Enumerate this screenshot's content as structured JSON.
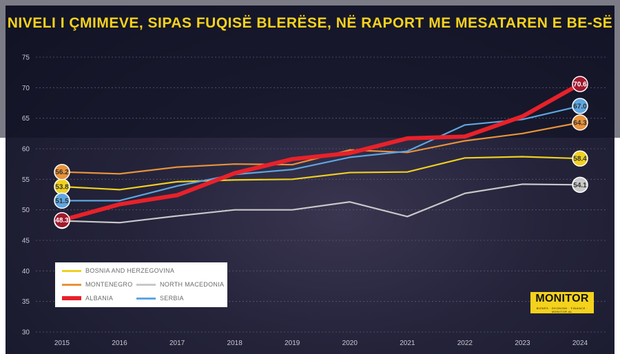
{
  "title": "NIVELI I ÇMIMEVE, SIPAS FUQISË BLERËSE, NË RAPORT ME MESATAREN E BE-SË",
  "logo": {
    "main": "MONITOR",
    "sub": "BIZNES · EKONOMI · FINANCE · MONITOR.AL"
  },
  "chart_data": {
    "type": "line",
    "title": "NIVELI I ÇMIMEVE, SIPAS FUQISË BLERËSE, NË RAPORT ME MESATAREN E BE-SË",
    "x": [
      "2015",
      "2016",
      "2017",
      "2018",
      "2019",
      "2020",
      "2021",
      "2022",
      "2023",
      "2024"
    ],
    "ylim": [
      30,
      75
    ],
    "yticks": [
      "30",
      "35",
      "40",
      "45",
      "50",
      "55",
      "60",
      "65",
      "70",
      "75"
    ],
    "grid": true,
    "legend_position": "bottom-left",
    "series": [
      {
        "name": "BOSNIA AND HERZEGOVINA",
        "color": "#f0d020",
        "label_bg": "#f0d020",
        "values": [
          53.8,
          53.3,
          54.6,
          54.9,
          55.0,
          56.1,
          56.2,
          58.5,
          58.7,
          58.4
        ],
        "start_label": "53.8",
        "end_label": "58.4"
      },
      {
        "name": "MONTENEGRO",
        "color": "#e8923a",
        "label_bg": "#e8923a",
        "values": [
          56.2,
          55.9,
          57.0,
          57.5,
          57.4,
          59.8,
          59.4,
          61.3,
          62.5,
          64.3
        ],
        "start_label": "56.2",
        "end_label": "64.3"
      },
      {
        "name": "NORTH MACEDONIA",
        "color": "#c8c8c8",
        "label_bg": "#c8c8c8",
        "values": [
          48.2,
          47.9,
          49.0,
          50.0,
          50.0,
          51.3,
          48.9,
          52.7,
          54.2,
          54.1
        ],
        "start_label": "48.2",
        "end_label": "54.1"
      },
      {
        "name": "ALBANIA",
        "color": "#e8212a",
        "label_bg": "#a01a2e",
        "values": [
          48.3,
          50.9,
          52.4,
          56.0,
          58.3,
          59.3,
          61.7,
          62.0,
          65.3,
          70.6
        ],
        "start_label": "48.3",
        "end_label": "70.6"
      },
      {
        "name": "SERBIA",
        "color": "#5ea6e0",
        "label_bg": "#5ea6e0",
        "values": [
          51.5,
          51.5,
          53.9,
          55.8,
          56.6,
          58.6,
          59.6,
          63.9,
          64.8,
          67.0
        ],
        "start_label": "51.5",
        "end_label": "67.0"
      }
    ]
  }
}
